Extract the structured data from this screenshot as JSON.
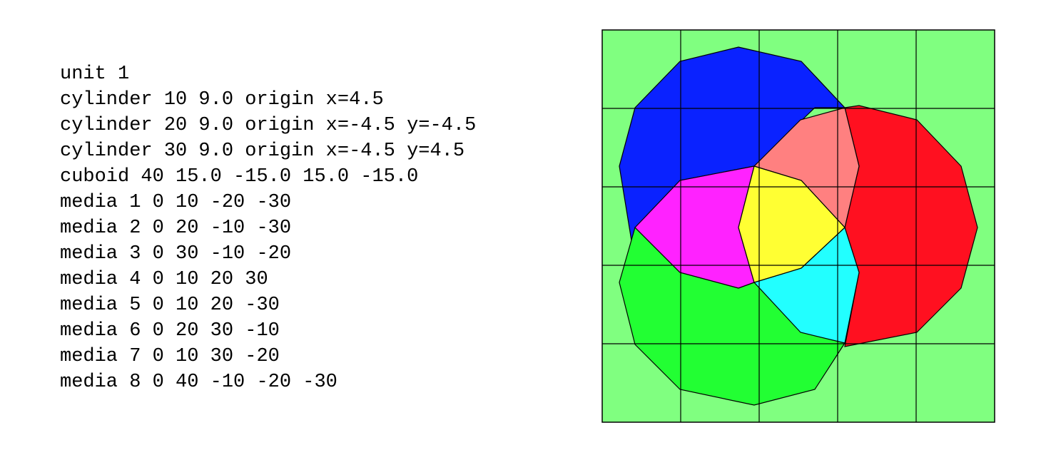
{
  "input_listing": {
    "lines": [
      "unit 1",
      "cylinder 10 9.0 origin x=4.5",
      "cylinder 20 9.0 origin x=-4.5 y=-4.5",
      "cylinder 30 9.0 origin x=-4.5 y=4.5",
      "cuboid 40 15.0 -15.0 15.0 -15.0",
      "media 1 0 10 -20 -30",
      "media 2 0 20 -10 -30",
      "media 3 0 30 -10 -20",
      "media 4 0 10 20 30",
      "media 5 0 10 20 -30",
      "media 6 0 20 30 -10",
      "media 7 0 10 30 -20",
      "media 8 0 40 -10 -20 -30"
    ]
  },
  "geometry": {
    "grid_columns": 5,
    "grid_rows": 5,
    "colors": {
      "background_region": "#80ff80",
      "region_upper_left": "#0a22ff",
      "region_right": "#ff1020",
      "region_lower_left": "#22ff33",
      "overlap_upper_left_lower_left": "#ff22ff",
      "overlap_upper_left_right": "#ff8080",
      "overlap_right_lower_left": "#22ffff",
      "overlap_all_three": "#ffff33",
      "grid_line": "#000000"
    }
  }
}
